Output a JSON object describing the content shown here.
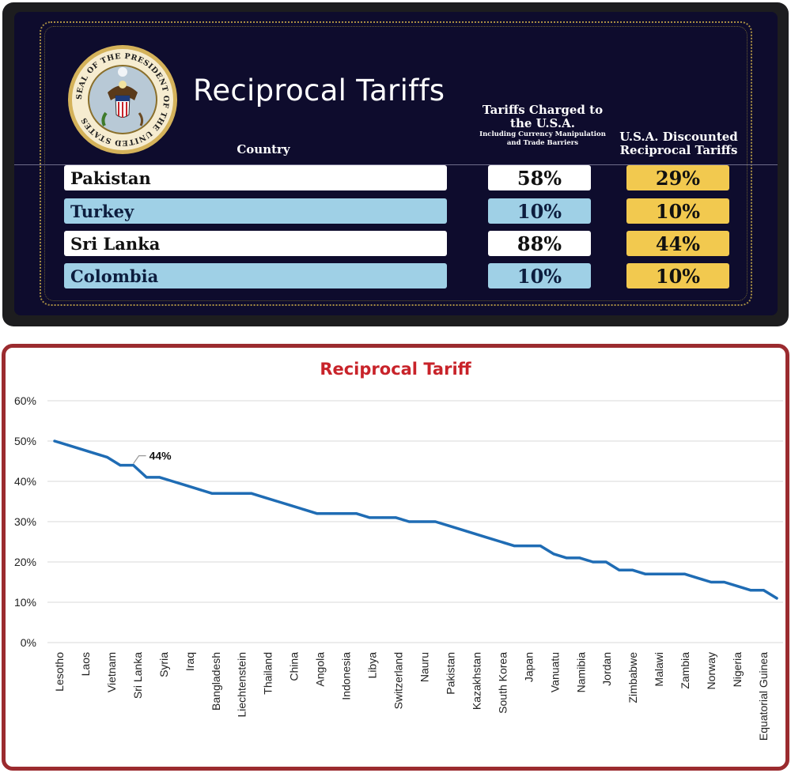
{
  "board": {
    "title": "Reciprocal Tariffs",
    "seal_text": "SEAL OF THE PRESIDENT OF THE UNITED STATES",
    "headers": {
      "country": "Country",
      "charged": "Tariffs Charged to the U.S.A.",
      "charged_note": "Including Currency Manipulation and Trade Barriers",
      "discounted": "U.S.A. Discounted Reciprocal Tariffs"
    },
    "rows": [
      {
        "country": "Pakistan",
        "charged": "58%",
        "discounted": "29%"
      },
      {
        "country": "Turkey",
        "charged": "10%",
        "discounted": "10%"
      },
      {
        "country": "Sri Lanka",
        "charged": "88%",
        "discounted": "44%"
      },
      {
        "country": "Colombia",
        "charged": "10%",
        "discounted": "10%"
      }
    ],
    "colors": {
      "background": "#0e0c2d",
      "row_white": "#ffffff",
      "row_blue": "#9fd0e6",
      "discount": "#f2c94f",
      "border_dots": "#c2a548"
    }
  },
  "chart_data": {
    "type": "line",
    "title": "Reciprocal Tariff",
    "xlabel": "",
    "ylabel": "",
    "ylim": [
      0,
      60
    ],
    "y_ticks": [
      "0%",
      "10%",
      "20%",
      "30%",
      "40%",
      "50%",
      "60%"
    ],
    "x_labels": [
      "Lesotho",
      "Laos",
      "Vietnam",
      "Sri Lanka",
      "Syria",
      "Iraq",
      "Bangladesh",
      "Liechtenstein",
      "Thailand",
      "China",
      "Angola",
      "Indonesia",
      "Libya",
      "Switzerland",
      "Nauru",
      "Pakistan",
      "Kazakhstan",
      "South Korea",
      "Japan",
      "Vanuatu",
      "Namibia",
      "Jordan",
      "Zimbabwe",
      "Malawi",
      "Zambia",
      "Norway",
      "Nigeria",
      "Equatorial Guinea"
    ],
    "values": [
      50,
      49,
      48,
      47,
      46,
      44,
      44,
      41,
      41,
      40,
      39,
      38,
      37,
      37,
      37,
      37,
      36,
      35,
      34,
      33,
      32,
      32,
      32,
      32,
      31,
      31,
      31,
      30,
      30,
      30,
      29,
      28,
      27,
      26,
      25,
      24,
      24,
      24,
      22,
      21,
      21,
      20,
      20,
      18,
      18,
      17,
      17,
      17,
      17,
      16,
      15,
      15,
      14,
      13,
      13,
      11
    ],
    "annotation": {
      "label": "44%",
      "point_index": 6
    },
    "grid": true,
    "line_color": "#1f6cb4",
    "title_color": "#c8232a",
    "frame_color": "#9b2b2f"
  }
}
